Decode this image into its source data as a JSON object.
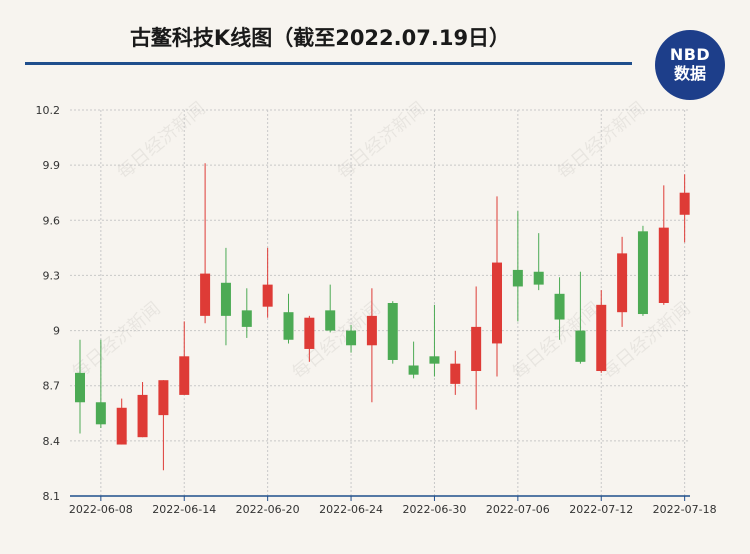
{
  "header": {
    "title": "古鳌科技K线图（截至2022.07.19日）",
    "logo_line1": "NBD",
    "logo_line2": "数据"
  },
  "watermark": "每日经济新闻",
  "colors": {
    "up": "#de3b36",
    "down": "#4caa54",
    "title_rule": "#1f4e8c",
    "logo": "#1d3e8a",
    "grid": "#c8c8c8",
    "axis": "#1f4e8c"
  },
  "chart_data": {
    "type": "candlestick",
    "title": "古鳌科技K线图（截至2022.07.19日）",
    "ylim": [
      8.1,
      10.2
    ],
    "y_ticks": [
      8.1,
      8.4,
      8.7,
      9,
      9.3,
      9.6,
      9.9,
      10.2
    ],
    "x_ticks": [
      "2022-06-08",
      "2022-06-14",
      "2022-06-20",
      "2022-06-24",
      "2022-06-30",
      "2022-07-06",
      "2022-07-12",
      "2022-07-18"
    ],
    "grid": true,
    "candles": [
      {
        "date": "2022-06-07",
        "open": 8.77,
        "close": 8.61,
        "high": 8.95,
        "low": 8.44
      },
      {
        "date": "2022-06-08",
        "open": 8.61,
        "close": 8.49,
        "high": 8.95,
        "low": 8.47
      },
      {
        "date": "2022-06-09",
        "open": 8.38,
        "close": 8.58,
        "high": 8.63,
        "low": 8.38
      },
      {
        "date": "2022-06-10",
        "open": 8.42,
        "close": 8.65,
        "high": 8.72,
        "low": 8.42
      },
      {
        "date": "2022-06-13",
        "open": 8.54,
        "close": 8.73,
        "high": 8.73,
        "low": 8.24
      },
      {
        "date": "2022-06-14",
        "open": 8.65,
        "close": 8.86,
        "high": 9.05,
        "low": 8.65
      },
      {
        "date": "2022-06-15",
        "open": 9.08,
        "close": 9.31,
        "high": 9.91,
        "low": 9.04
      },
      {
        "date": "2022-06-16",
        "open": 9.26,
        "close": 9.08,
        "high": 9.45,
        "low": 8.92
      },
      {
        "date": "2022-06-17",
        "open": 9.11,
        "close": 9.02,
        "high": 9.23,
        "low": 8.96
      },
      {
        "date": "2022-06-20",
        "open": 9.13,
        "close": 9.25,
        "high": 9.45,
        "low": 9.07
      },
      {
        "date": "2022-06-21",
        "open": 9.1,
        "close": 8.95,
        "high": 9.2,
        "low": 8.93
      },
      {
        "date": "2022-06-22",
        "open": 8.9,
        "close": 9.07,
        "high": 9.08,
        "low": 8.83
      },
      {
        "date": "2022-06-23",
        "open": 9.11,
        "close": 9.0,
        "high": 9.25,
        "low": 8.99
      },
      {
        "date": "2022-06-24",
        "open": 9.0,
        "close": 8.92,
        "high": 9.03,
        "low": 8.88
      },
      {
        "date": "2022-06-27",
        "open": 8.92,
        "close": 9.08,
        "high": 9.23,
        "low": 8.61
      },
      {
        "date": "2022-06-28",
        "open": 9.15,
        "close": 8.84,
        "high": 9.16,
        "low": 8.82
      },
      {
        "date": "2022-06-29",
        "open": 8.81,
        "close": 8.76,
        "high": 8.94,
        "low": 8.74
      },
      {
        "date": "2022-06-30",
        "open": 8.86,
        "close": 8.82,
        "high": 9.14,
        "low": 8.75
      },
      {
        "date": "2022-07-01",
        "open": 8.71,
        "close": 8.82,
        "high": 8.89,
        "low": 8.65
      },
      {
        "date": "2022-07-04",
        "open": 8.78,
        "close": 9.02,
        "high": 9.24,
        "low": 8.57
      },
      {
        "date": "2022-07-05",
        "open": 8.93,
        "close": 9.37,
        "high": 9.73,
        "low": 8.75
      },
      {
        "date": "2022-07-06",
        "open": 9.33,
        "close": 9.24,
        "high": 9.65,
        "low": 9.05
      },
      {
        "date": "2022-07-07",
        "open": 9.32,
        "close": 9.25,
        "high": 9.53,
        "low": 9.22
      },
      {
        "date": "2022-07-08",
        "open": 9.2,
        "close": 9.06,
        "high": 9.29,
        "low": 8.95
      },
      {
        "date": "2022-07-11",
        "open": 9.0,
        "close": 8.83,
        "high": 9.32,
        "low": 8.82
      },
      {
        "date": "2022-07-12",
        "open": 8.78,
        "close": 9.14,
        "high": 9.22,
        "low": 8.77
      },
      {
        "date": "2022-07-13",
        "open": 9.1,
        "close": 9.42,
        "high": 9.51,
        "low": 9.02
      },
      {
        "date": "2022-07-14",
        "open": 9.54,
        "close": 9.09,
        "high": 9.57,
        "low": 9.08
      },
      {
        "date": "2022-07-15",
        "open": 9.15,
        "close": 9.56,
        "high": 9.79,
        "low": 9.14
      },
      {
        "date": "2022-07-18",
        "open": 9.63,
        "close": 9.75,
        "high": 9.85,
        "low": 9.48
      }
    ]
  }
}
